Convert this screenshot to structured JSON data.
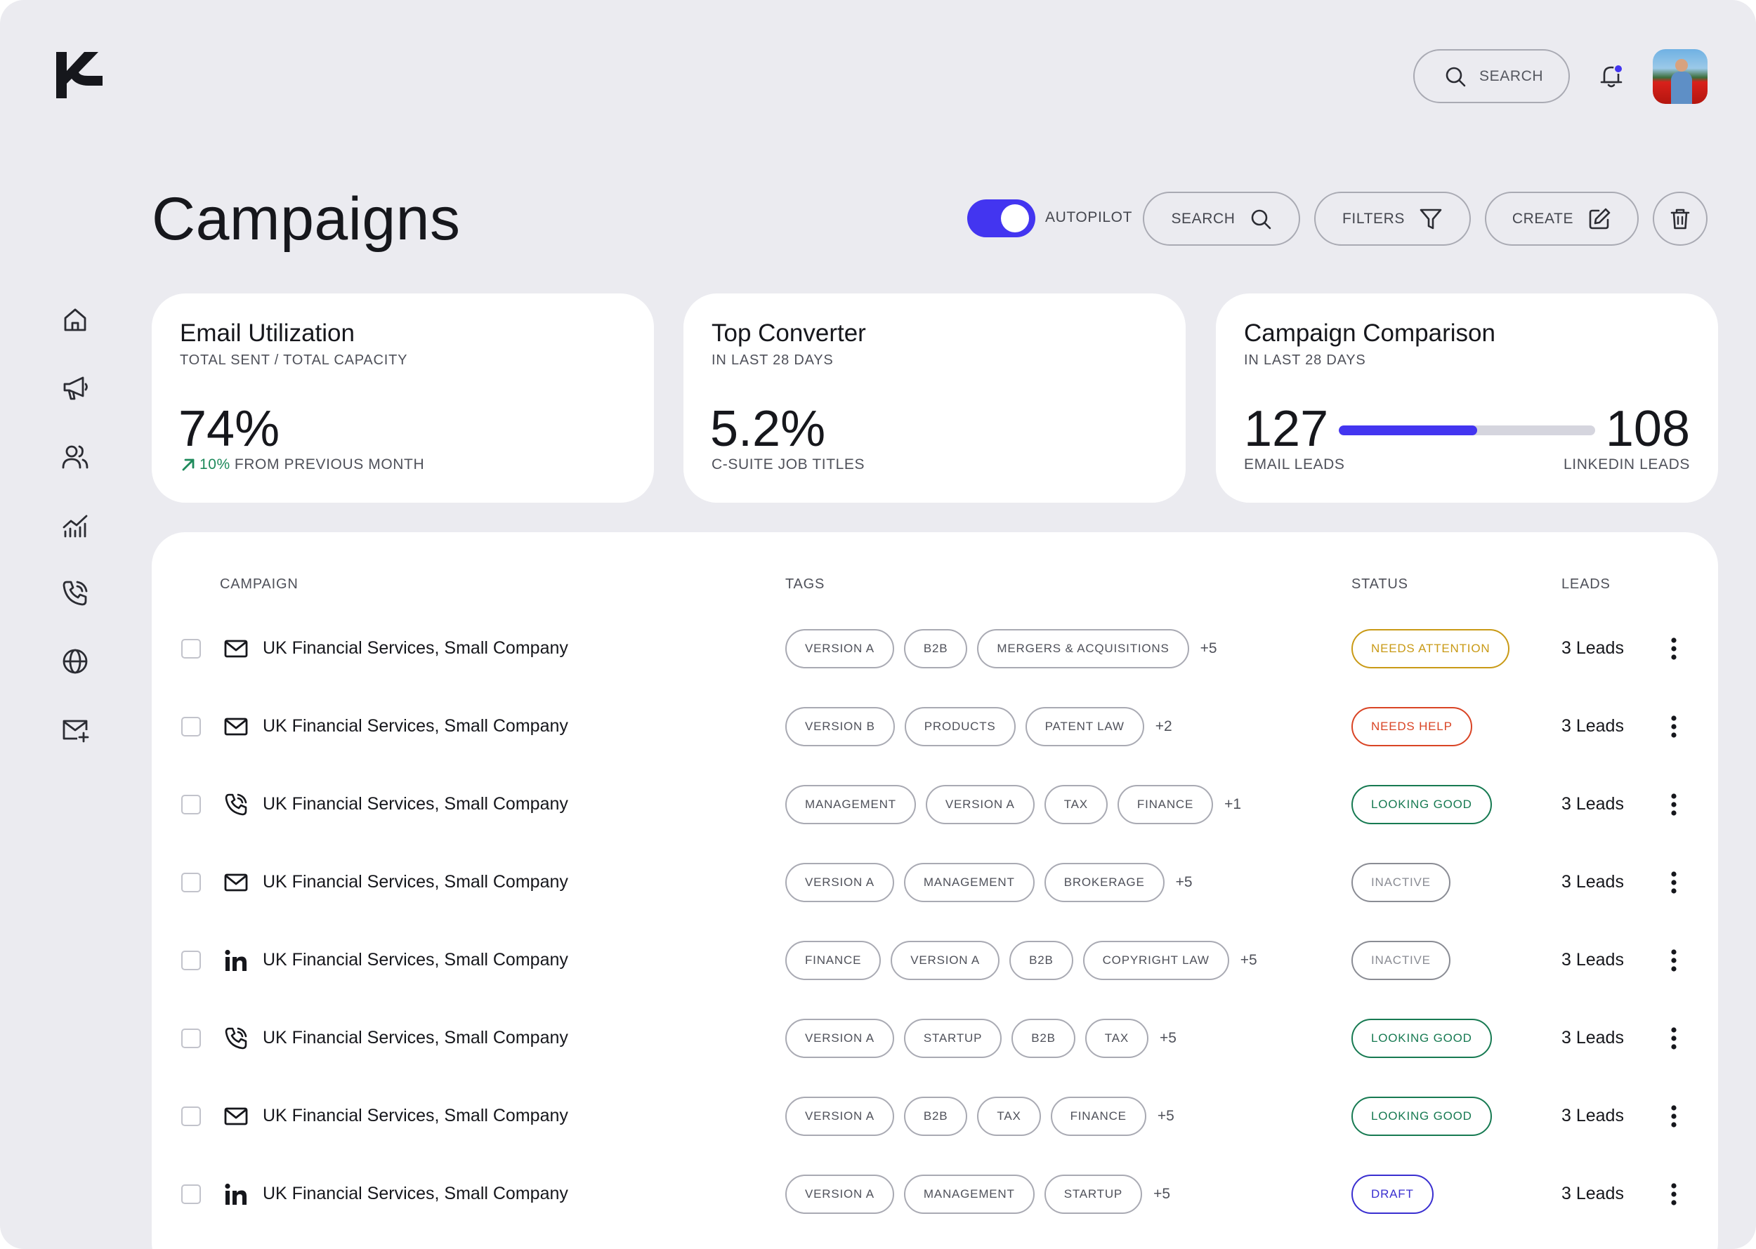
{
  "brand": {
    "logo_letter": "K"
  },
  "header": {
    "search_label": "SEARCH",
    "notification_dot_color": "#4335f0"
  },
  "page": {
    "title": "Campaigns"
  },
  "toolbar": {
    "autopilot_label": "AUTOPILOT",
    "autopilot_on": true,
    "search_label": "SEARCH",
    "filters_label": "FILTERS",
    "create_label": "CREATE"
  },
  "sidebar": {
    "items": [
      {
        "icon": "home-icon"
      },
      {
        "icon": "megaphone-icon"
      },
      {
        "icon": "users-icon"
      },
      {
        "icon": "analytics-icon"
      },
      {
        "icon": "phone-icon"
      },
      {
        "icon": "globe-icon"
      },
      {
        "icon": "mail-add-icon"
      }
    ]
  },
  "cards": {
    "email_utilization": {
      "title": "Email Utilization",
      "subtitle": "TOTAL SENT / TOTAL CAPACITY",
      "value": "74%",
      "change": "10%",
      "change_text": "FROM PREVIOUS MONTH"
    },
    "top_converter": {
      "title": "Top Converter",
      "subtitle": "IN LAST 28 DAYS",
      "value": "5.2%",
      "caption": "C-SUITE JOB TITLES"
    },
    "campaign_comparison": {
      "title": "Campaign Comparison",
      "subtitle": "IN LAST 28 DAYS",
      "left_value": "127",
      "left_label": "EMAIL LEADS",
      "right_value": "108",
      "right_label": "LINKEDIN LEADS",
      "bar_fill_fraction": 0.54
    }
  },
  "table": {
    "headers": {
      "campaign": "CAMPAIGN",
      "tags": "TAGS",
      "status": "STATUS",
      "leads": "LEADS"
    },
    "rows": [
      {
        "channel": "mail-icon",
        "name": "UK Financial Services, Small Company",
        "tags": [
          "VERSION A",
          "B2B",
          "MERGERS & ACQUISITIONS"
        ],
        "more": "+5",
        "status": "NEEDS ATTENTION",
        "status_color": "#c99a16",
        "leads": "3 Leads"
      },
      {
        "channel": "mail-icon",
        "name": "UK Financial Services, Small Company",
        "tags": [
          "VERSION B",
          "PRODUCTS",
          "PATENT LAW"
        ],
        "more": "+2",
        "status": "NEEDS HELP",
        "status_color": "#d94425",
        "leads": "3 Leads"
      },
      {
        "channel": "phone-icon",
        "name": "UK Financial Services, Small Company",
        "tags": [
          "MANAGEMENT",
          "VERSION A",
          "TAX",
          "FINANCE"
        ],
        "more": "+1",
        "status": "LOOKING GOOD",
        "status_color": "#177a52",
        "leads": "3 Leads"
      },
      {
        "channel": "mail-icon",
        "name": "UK Financial Services, Small Company",
        "tags": [
          "VERSION A",
          "MANAGEMENT",
          "BROKERAGE"
        ],
        "more": "+5",
        "status": "INACTIVE",
        "status_color": "#8a8c94",
        "leads": "3 Leads"
      },
      {
        "channel": "linkedin-icon",
        "name": "UK Financial Services, Small Company",
        "tags": [
          "FINANCE",
          "VERSION A",
          "B2B",
          "COPYRIGHT LAW"
        ],
        "more": "+5",
        "status": "INACTIVE",
        "status_color": "#8a8c94",
        "leads": "3 Leads"
      },
      {
        "channel": "phone-icon",
        "name": "UK Financial Services, Small Company",
        "tags": [
          "VERSION A",
          "STARTUP",
          "B2B",
          "TAX"
        ],
        "more": "+5",
        "status": "LOOKING GOOD",
        "status_color": "#177a52",
        "leads": "3 Leads"
      },
      {
        "channel": "mail-icon",
        "name": "UK Financial Services, Small Company",
        "tags": [
          "VERSION A",
          "B2B",
          "TAX",
          "FINANCE"
        ],
        "more": "+5",
        "status": "LOOKING GOOD",
        "status_color": "#177a52",
        "leads": "3 Leads"
      },
      {
        "channel": "linkedin-icon",
        "name": "UK Financial Services, Small Company",
        "tags": [
          "VERSION A",
          "MANAGEMENT",
          "STARTUP"
        ],
        "more": "+5",
        "status": "DRAFT",
        "status_color": "#3a2fd0",
        "leads": "3 Leads"
      }
    ]
  },
  "colors": {
    "accent": "#4335f0",
    "background": "#ebebf0",
    "card": "#ffffff"
  }
}
